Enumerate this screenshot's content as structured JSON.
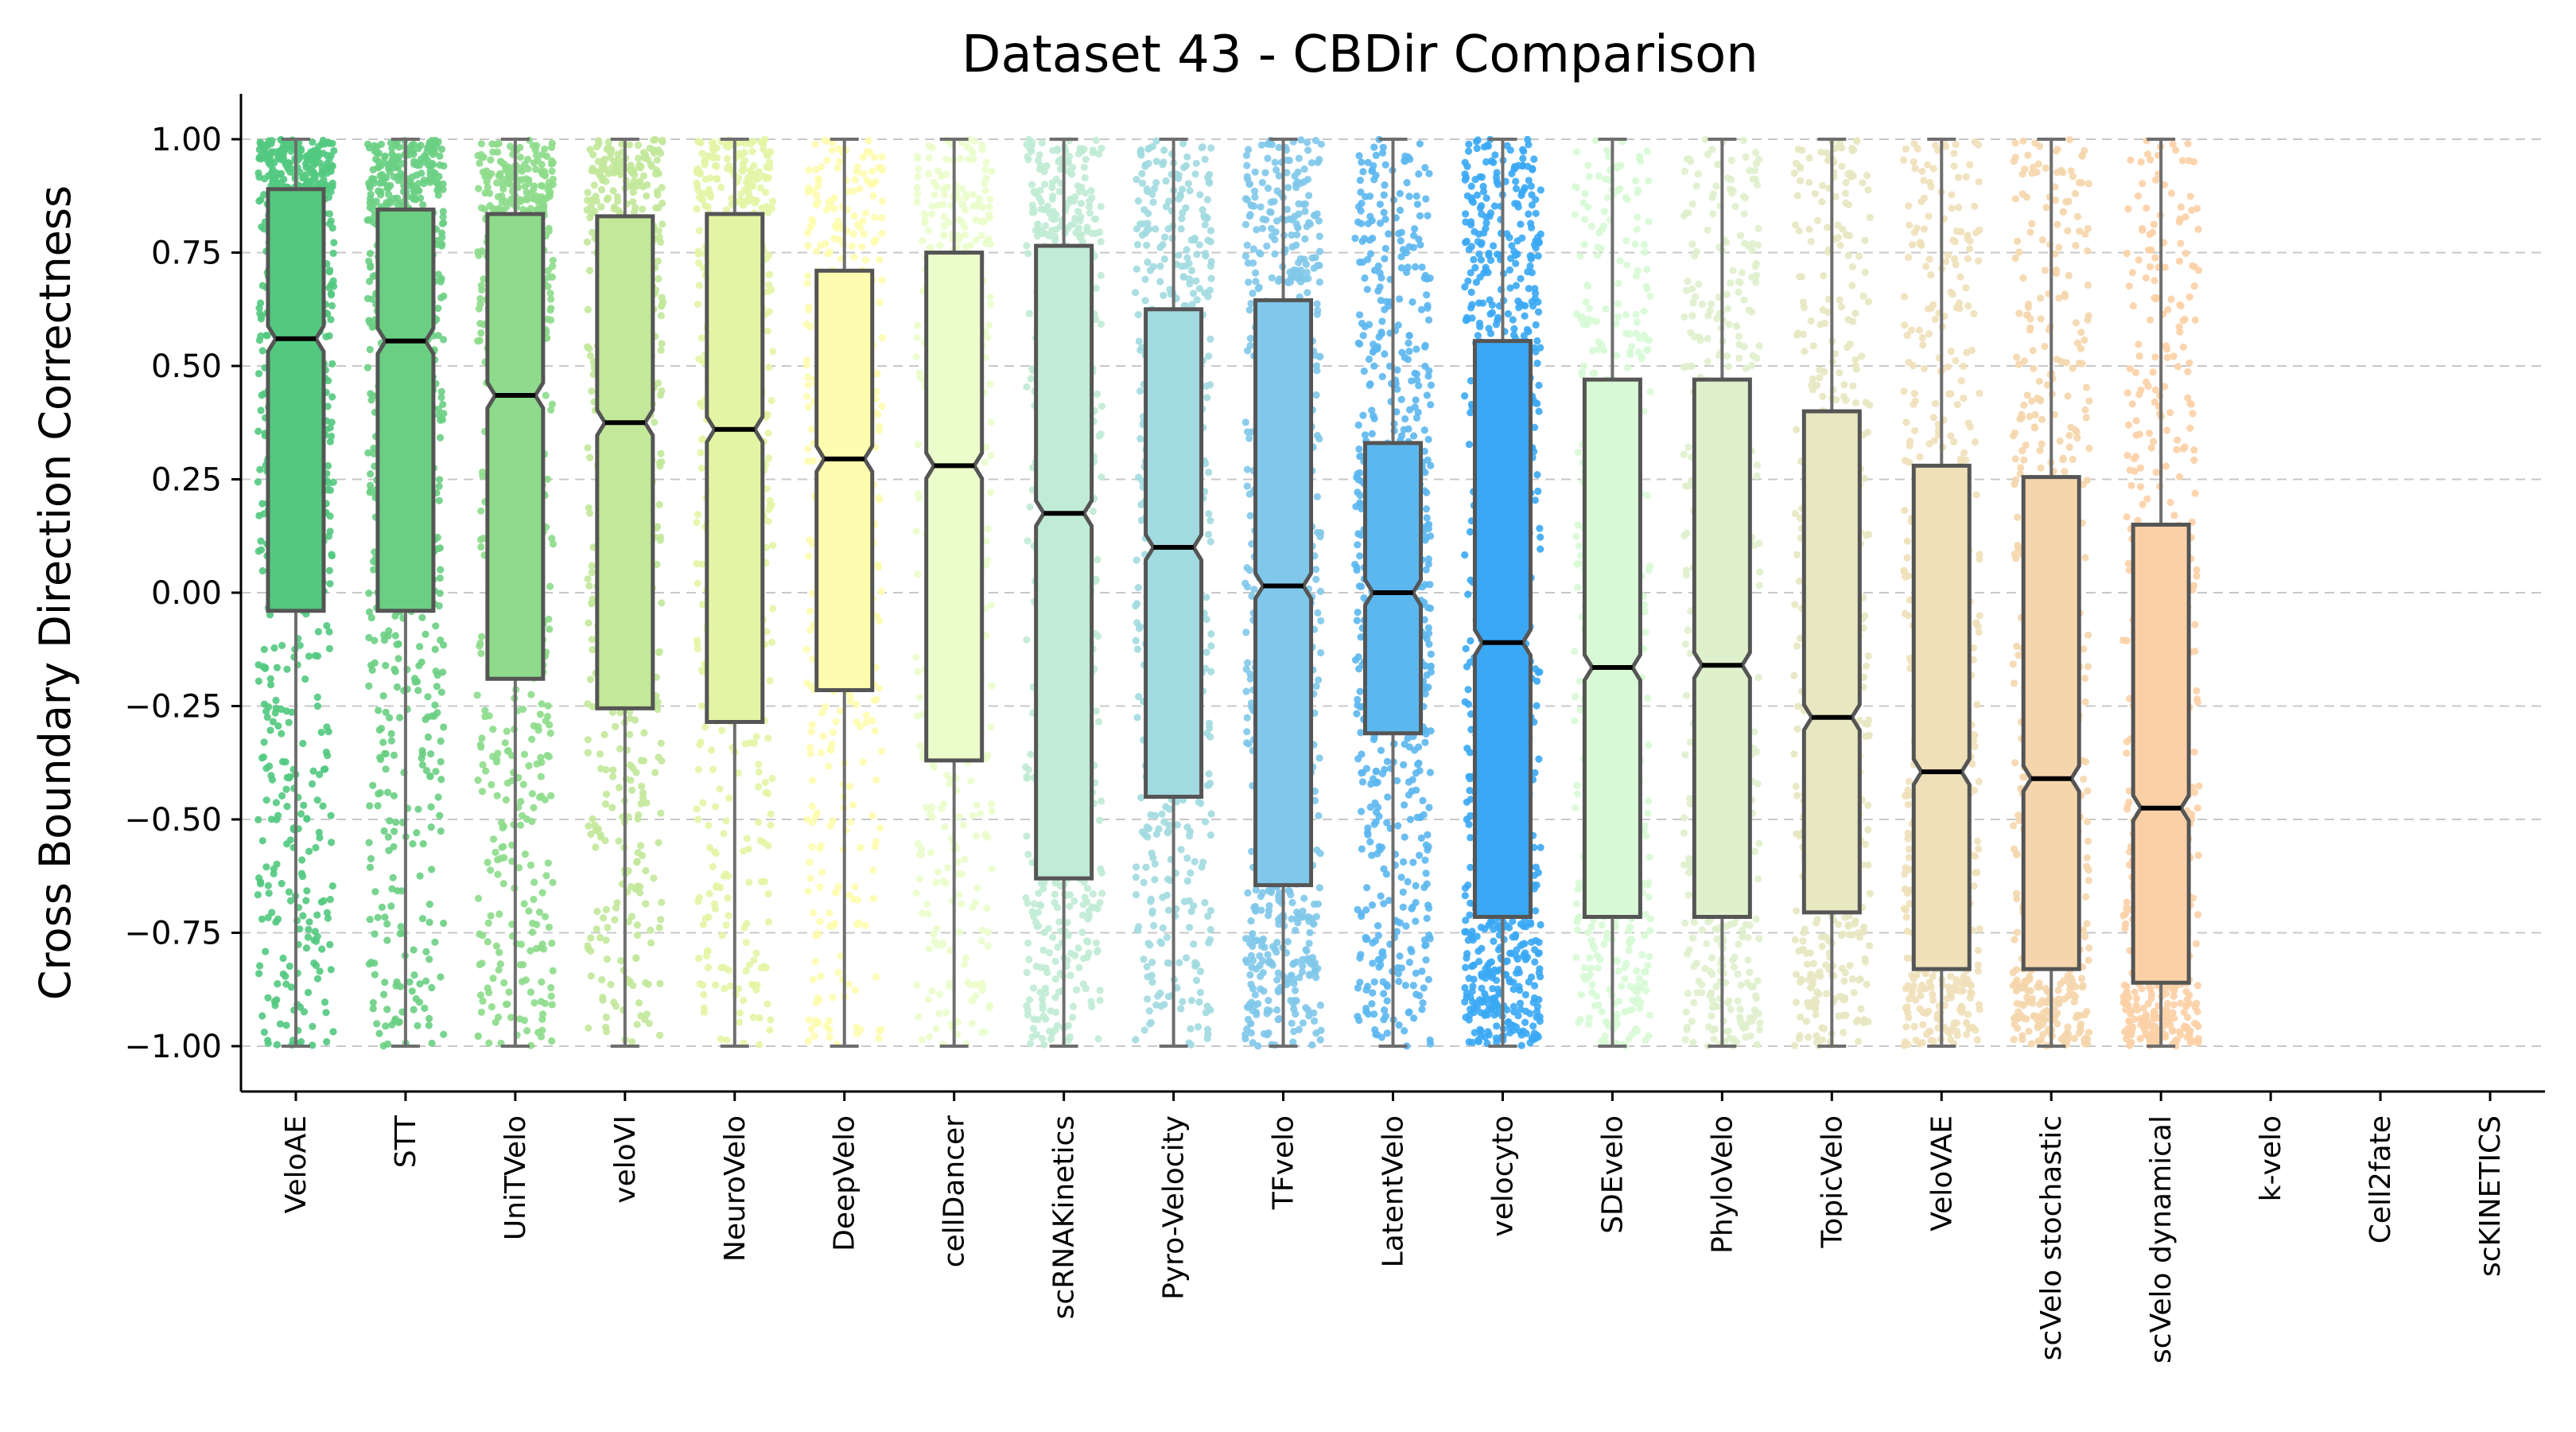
{
  "chart_data": {
    "type": "box",
    "title": "Dataset 43 - CBDir Comparison",
    "xlabel": "",
    "ylabel": "Cross Boundary Direction Correctness",
    "ylim": [
      -1.1,
      1.1
    ],
    "yticks": [
      1.0,
      0.75,
      0.5,
      0.25,
      0.0,
      -0.25,
      -0.5,
      -0.75,
      -1.0
    ],
    "ytick_labels": [
      "1.00",
      "0.75",
      "0.50",
      "0.25",
      "0.00",
      "−0.25",
      "−0.50",
      "−0.75",
      "−1.00"
    ],
    "grid": "horizontal-dashed",
    "categories": [
      "VeloAE",
      "STT",
      "UniTVelo",
      "veloVI",
      "NeuroVelo",
      "DeepVelo",
      "cellDancer",
      "scRNAKinetics",
      "Pyro-Velocity",
      "TFvelo",
      "LatentVelo",
      "velocyto",
      "SDEvelo",
      "PhyloVelo",
      "TopicVelo",
      "VeloVAE",
      "scVelo stochastic",
      "scVelo dynamical",
      "k-velo",
      "Cell2fate",
      "scKINETICS"
    ],
    "series": [
      {
        "name": "VeloAE",
        "color": "#52c97f",
        "whisker_low": -1.0,
        "q1": -0.04,
        "median": 0.56,
        "q3": 0.89,
        "whisker_high": 1.0,
        "density": 1.0
      },
      {
        "name": "STT",
        "color": "#6acf83",
        "whisker_low": -1.0,
        "q1": -0.04,
        "median": 0.555,
        "q3": 0.845,
        "whisker_high": 1.0,
        "density": 0.85
      },
      {
        "name": "UniTVelo",
        "color": "#8ddb8b",
        "whisker_low": -1.0,
        "q1": -0.19,
        "median": 0.435,
        "q3": 0.835,
        "whisker_high": 1.0,
        "density": 0.7
      },
      {
        "name": "veloVI",
        "color": "#c2e89a",
        "whisker_low": -1.0,
        "q1": -0.255,
        "median": 0.375,
        "q3": 0.83,
        "whisker_high": 1.0,
        "density": 0.5
      },
      {
        "name": "NeuroVelo",
        "color": "#e3f5a5",
        "whisker_low": -1.0,
        "q1": -0.285,
        "median": 0.36,
        "q3": 0.835,
        "whisker_high": 1.0,
        "density": 0.5
      },
      {
        "name": "DeepVelo",
        "color": "#fefcae",
        "whisker_low": -1.0,
        "q1": -0.215,
        "median": 0.295,
        "q3": 0.71,
        "whisker_high": 1.0,
        "density": 0.4
      },
      {
        "name": "cellDancer",
        "color": "#eafdcb",
        "whisker_low": -1.0,
        "q1": -0.37,
        "median": 0.28,
        "q3": 0.75,
        "whisker_high": 1.0,
        "density": 0.3
      },
      {
        "name": "scRNAKinetics",
        "color": "#c0ebd4",
        "whisker_low": -1.0,
        "q1": -0.63,
        "median": 0.175,
        "q3": 0.765,
        "whisker_high": 1.0,
        "density": 0.5
      },
      {
        "name": "Pyro-Velocity",
        "color": "#a1dae0",
        "whisker_low": -1.0,
        "q1": -0.45,
        "median": 0.1,
        "q3": 0.625,
        "whisker_high": 1.0,
        "density": 0.5
      },
      {
        "name": "TFvelo",
        "color": "#7fc8ea",
        "whisker_low": -1.0,
        "q1": -0.645,
        "median": 0.015,
        "q3": 0.645,
        "whisker_high": 1.0,
        "density": 0.8
      },
      {
        "name": "LatentVelo",
        "color": "#5cb7ef",
        "whisker_low": -1.0,
        "q1": -0.31,
        "median": 0.0,
        "q3": 0.33,
        "whisker_high": 1.0,
        "density": 0.9
      },
      {
        "name": "velocyto",
        "color": "#3aa8f5",
        "whisker_low": -1.0,
        "q1": -0.715,
        "median": -0.11,
        "q3": 0.555,
        "whisker_high": 1.0,
        "density": 1.0
      },
      {
        "name": "SDEvelo",
        "color": "#d7f9d5",
        "whisker_low": -1.0,
        "q1": -0.715,
        "median": -0.165,
        "q3": 0.47,
        "whisker_high": 1.0,
        "density": 0.35
      },
      {
        "name": "PhyloVelo",
        "color": "#dff0cc",
        "whisker_low": -1.0,
        "q1": -0.715,
        "median": -0.16,
        "q3": 0.47,
        "whisker_high": 1.0,
        "density": 0.35
      },
      {
        "name": "TopicVelo",
        "color": "#e7e7c1",
        "whisker_low": -1.0,
        "q1": -0.705,
        "median": -0.275,
        "q3": 0.4,
        "whisker_high": 1.0,
        "density": 0.45
      },
      {
        "name": "VeloVAE",
        "color": "#efe0b9",
        "whisker_low": -1.0,
        "q1": -0.83,
        "median": -0.395,
        "q3": 0.28,
        "whisker_high": 1.0,
        "density": 0.5
      },
      {
        "name": "scVelo stochastic",
        "color": "#f5d6ac",
        "whisker_low": -1.0,
        "q1": -0.83,
        "median": -0.41,
        "q3": 0.255,
        "whisker_high": 1.0,
        "density": 0.5
      },
      {
        "name": "scVelo dynamical",
        "color": "#fcd0a6",
        "whisker_low": -1.0,
        "q1": -0.86,
        "median": -0.475,
        "q3": 0.15,
        "whisker_high": 1.0,
        "density": 0.6
      },
      {
        "name": "k-velo",
        "color": "#ffffff",
        "empty": true
      },
      {
        "name": "Cell2fate",
        "color": "#ffffff",
        "empty": true
      },
      {
        "name": "scKINETICS",
        "color": "#ffffff",
        "empty": true
      }
    ]
  }
}
